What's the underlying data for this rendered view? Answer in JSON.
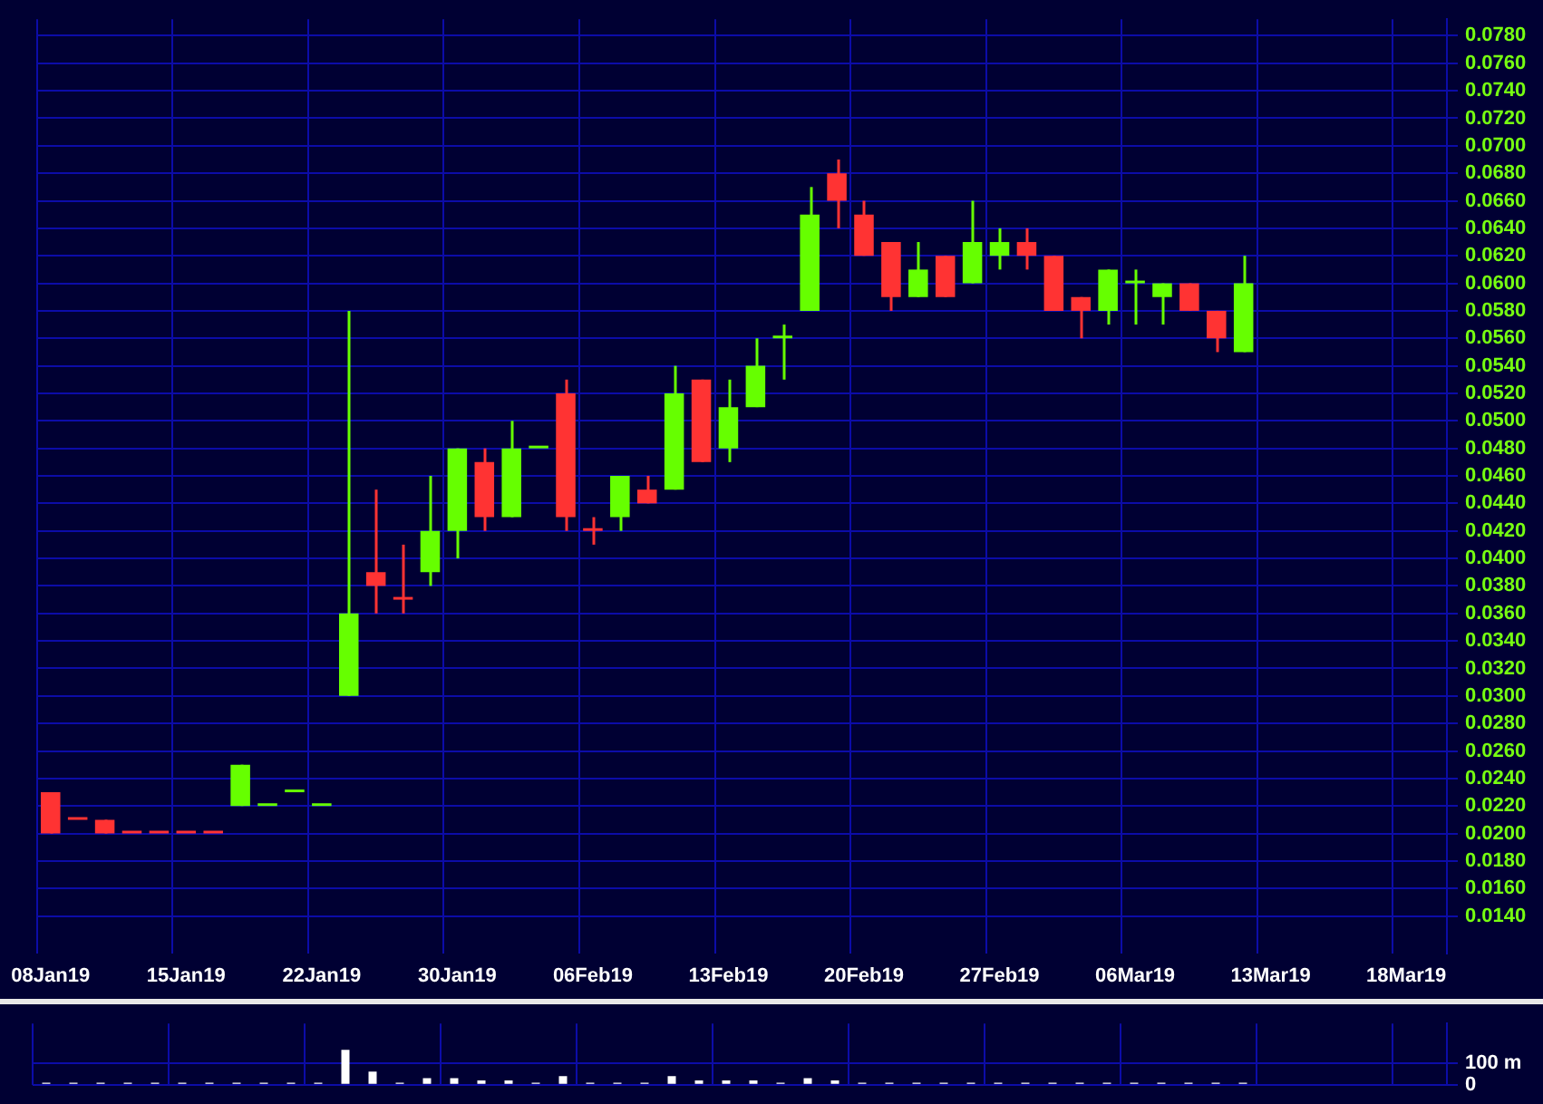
{
  "chart_data": [
    {
      "type": "candlestick",
      "categories": [
        "08Jan19",
        null,
        null,
        null,
        null,
        "15Jan19",
        null,
        null,
        null,
        null,
        "22Jan19",
        null,
        null,
        null,
        null,
        "30Jan19",
        null,
        null,
        null,
        null,
        "06Feb19",
        null,
        null,
        null,
        null,
        "13Feb19",
        null,
        null,
        null,
        null,
        "20Feb19",
        null,
        null,
        null,
        null,
        "27Feb19",
        null,
        null,
        null,
        null,
        "06Mar19",
        null,
        null,
        null,
        null,
        "13Mar19",
        null,
        null,
        null,
        null,
        "18Mar19",
        null
      ],
      "ohlc": [
        [
          0.023,
          0.023,
          0.02,
          0.02
        ],
        [
          0.021,
          0.021,
          0.021,
          0.021
        ],
        [
          0.021,
          0.021,
          0.02,
          0.02
        ],
        [
          0.02,
          0.02,
          0.02,
          0.02
        ],
        [
          0.02,
          0.02,
          0.02,
          0.02
        ],
        [
          0.02,
          0.02,
          0.02,
          0.02
        ],
        [
          0.02,
          0.02,
          0.02,
          0.02
        ],
        [
          0.022,
          0.025,
          0.022,
          0.025
        ],
        [
          0.022,
          0.022,
          0.022,
          0.022
        ],
        [
          0.023,
          0.023,
          0.023,
          0.023
        ],
        [
          0.022,
          0.022,
          0.022,
          0.022
        ],
        [
          0.03,
          0.058,
          0.03,
          0.036
        ],
        [
          0.039,
          0.045,
          0.036,
          0.038
        ],
        [
          0.037,
          0.041,
          0.036,
          0.037
        ],
        [
          0.039,
          0.046,
          0.038,
          0.042
        ],
        [
          0.042,
          0.048,
          0.04,
          0.048
        ],
        [
          0.047,
          0.048,
          0.042,
          0.043
        ],
        [
          0.043,
          0.05,
          0.043,
          0.048
        ],
        [
          0.048,
          0.048,
          0.048,
          0.048
        ],
        [
          0.052,
          0.053,
          0.042,
          0.043
        ],
        [
          0.042,
          0.043,
          0.041,
          0.042
        ],
        [
          0.043,
          0.046,
          0.042,
          0.046
        ],
        [
          0.045,
          0.046,
          0.044,
          0.044
        ],
        [
          0.045,
          0.054,
          0.045,
          0.052
        ],
        [
          0.053,
          0.053,
          0.047,
          0.047
        ],
        [
          0.048,
          0.053,
          0.047,
          0.051
        ],
        [
          0.051,
          0.056,
          0.051,
          0.054
        ],
        [
          0.056,
          0.057,
          0.053,
          0.056
        ],
        [
          0.058,
          0.067,
          0.058,
          0.065
        ],
        [
          0.068,
          0.069,
          0.064,
          0.066
        ],
        [
          0.065,
          0.066,
          0.062,
          0.062
        ],
        [
          0.063,
          0.063,
          0.058,
          0.059
        ],
        [
          0.059,
          0.063,
          0.059,
          0.061
        ],
        [
          0.062,
          0.062,
          0.059,
          0.059
        ],
        [
          0.06,
          0.066,
          0.06,
          0.063
        ],
        [
          0.062,
          0.064,
          0.061,
          0.063
        ],
        [
          0.063,
          0.064,
          0.061,
          0.062
        ],
        [
          0.062,
          0.062,
          0.058,
          0.058
        ],
        [
          0.059,
          0.059,
          0.056,
          0.058
        ],
        [
          0.058,
          0.061,
          0.057,
          0.061
        ],
        [
          0.06,
          0.061,
          0.057,
          0.06
        ],
        [
          0.059,
          0.06,
          0.057,
          0.06
        ],
        [
          0.06,
          0.06,
          0.058,
          0.058
        ],
        [
          0.058,
          0.058,
          0.055,
          0.056
        ],
        [
          0.055,
          0.062,
          0.055,
          0.06
        ],
        null,
        null,
        null,
        null,
        null,
        null,
        null
      ],
      "colors": [
        "#ff3333",
        "#ff3333",
        "#ff3333",
        "#ff3333",
        "#ff3333",
        "#ff3333",
        "#ff3333",
        "#66ff00",
        "#66ff00",
        "#66ff00",
        "#66ff00",
        "#66ff00",
        "#ff3333",
        "#ff3333",
        "#66ff00",
        "#66ff00",
        "#ff3333",
        "#66ff00",
        "#66ff00",
        "#ff3333",
        "#ff3333",
        "#66ff00",
        "#ff3333",
        "#66ff00",
        "#ff3333",
        "#66ff00",
        "#66ff00",
        "#66ff00",
        "#66ff00",
        "#ff3333",
        "#ff3333",
        "#ff3333",
        "#66ff00",
        "#ff3333",
        "#66ff00",
        "#66ff00",
        "#ff3333",
        "#ff3333",
        "#ff3333",
        "#66ff00",
        "#66ff00",
        "#66ff00",
        "#ff3333",
        "#ff3333",
        "#66ff00",
        null,
        null,
        null,
        null,
        null,
        null,
        null
      ],
      "ylim": [
        0.0113,
        0.0792
      ],
      "yticks": [
        {
          "value": 0.014,
          "label": "0.0140"
        },
        {
          "value": 0.016,
          "label": "0.0160"
        },
        {
          "value": 0.018,
          "label": "0.0180"
        },
        {
          "value": 0.02,
          "label": "0.0200"
        },
        {
          "value": 0.022,
          "label": "0.0220"
        },
        {
          "value": 0.024,
          "label": "0.0240"
        },
        {
          "value": 0.026,
          "label": "0.0260"
        },
        {
          "value": 0.028,
          "label": "0.0280"
        },
        {
          "value": 0.03,
          "label": "0.0300"
        },
        {
          "value": 0.032,
          "label": "0.0320"
        },
        {
          "value": 0.034,
          "label": "0.0340"
        },
        {
          "value": 0.036,
          "label": "0.0360"
        },
        {
          "value": 0.038,
          "label": "0.0380"
        },
        {
          "value": 0.04,
          "label": "0.0400"
        },
        {
          "value": 0.042,
          "label": "0.0420"
        },
        {
          "value": 0.044,
          "label": "0.0440"
        },
        {
          "value": 0.046,
          "label": "0.0460"
        },
        {
          "value": 0.048,
          "label": "0.0480"
        },
        {
          "value": 0.05,
          "label": "0.0500"
        },
        {
          "value": 0.052,
          "label": "0.0520"
        },
        {
          "value": 0.054,
          "label": "0.0540"
        },
        {
          "value": 0.056,
          "label": "0.0560"
        },
        {
          "value": 0.058,
          "label": "0.0580"
        },
        {
          "value": 0.06,
          "label": "0.0600"
        },
        {
          "value": 0.062,
          "label": "0.0620"
        },
        {
          "value": 0.064,
          "label": "0.0640"
        },
        {
          "value": 0.066,
          "label": "0.0660"
        },
        {
          "value": 0.068,
          "label": "0.0680"
        },
        {
          "value": 0.07,
          "label": "0.0700"
        },
        {
          "value": 0.072,
          "label": "0.0720"
        },
        {
          "value": 0.074,
          "label": "0.0740"
        },
        {
          "value": 0.076,
          "label": "0.0760"
        },
        {
          "value": 0.078,
          "label": "0.0780"
        }
      ],
      "grid": true
    },
    {
      "type": "bar",
      "categories": [
        null,
        null,
        null,
        null,
        null,
        null,
        null,
        null,
        null,
        null,
        null,
        null,
        null,
        null,
        null,
        null,
        null,
        null,
        null,
        null,
        null,
        null,
        null,
        null,
        null,
        null,
        null,
        null,
        null,
        null,
        null,
        null,
        null,
        null,
        null,
        null,
        null,
        null,
        null,
        null,
        null,
        null,
        null,
        null,
        null,
        null,
        null,
        null,
        null,
        null,
        null,
        null
      ],
      "values": [
        10,
        10,
        10,
        10,
        10,
        10,
        10,
        10,
        10,
        10,
        10,
        160,
        60,
        10,
        30,
        30,
        20,
        20,
        10,
        40,
        10,
        10,
        10,
        40,
        20,
        20,
        20,
        10,
        30,
        20,
        10,
        10,
        10,
        10,
        10,
        10,
        10,
        10,
        10,
        10,
        10,
        10,
        10,
        10,
        10,
        null,
        null,
        null,
        null,
        null,
        null,
        null
      ],
      "color": "#ffffff",
      "ylim": [
        0,
        280
      ],
      "yticks": [
        0,
        {
          "value": 100,
          "label": "100 m"
        }
      ],
      "grid": true,
      "tick_labels": "y"
    }
  ]
}
